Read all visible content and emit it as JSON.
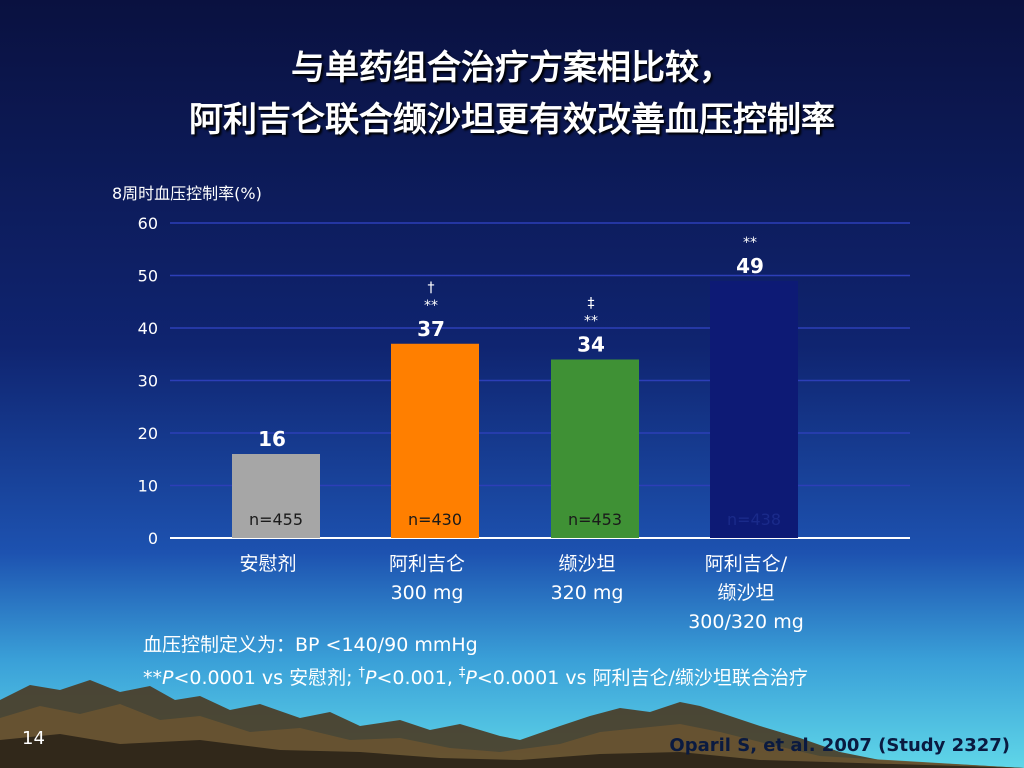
{
  "slide": {
    "title_line1": "与单药组合治疗方案相比较，",
    "title_line2": "阿利吉仑联合缬沙坦更有效改善血压控制率",
    "y_axis_title": "8周时血压控制率(%)",
    "footnote_definition": "血压控制定义为：BP <140/90 mmHg",
    "footnote_pvalues": {
      "a": "**",
      "b": "P",
      "c": "<0.0001 vs 安慰剂; ",
      "d": "†",
      "e": "P",
      "f": "<0.001, ",
      "g": "‡",
      "h": "P",
      "i": "<0.0001 vs 阿利吉仑/缬沙坦联合治疗"
    },
    "slide_number": "14",
    "citation": "Oparil S, et al. 2007 (Study 2327)"
  },
  "chart_data": {
    "type": "bar",
    "ylim": [
      0,
      60
    ],
    "yticks": [
      "0",
      "10",
      "20",
      "30",
      "40",
      "50",
      "60"
    ],
    "grid": true,
    "categories": [
      {
        "lines": [
          "安慰剂"
        ]
      },
      {
        "lines": [
          "阿利吉仑",
          "300 mg"
        ]
      },
      {
        "lines": [
          "缬沙坦",
          "320 mg"
        ]
      },
      {
        "lines": [
          "阿利吉仑/",
          "缬沙坦",
          "300/320 mg"
        ]
      }
    ],
    "values": [
      16,
      37,
      34,
      49
    ],
    "value_labels": [
      "16",
      "37",
      "34",
      "49"
    ],
    "sample_sizes": [
      "n=455",
      "n=430",
      "n=453",
      "n=438"
    ],
    "significance": [
      [],
      [
        "†",
        "**"
      ],
      [
        "‡",
        "**"
      ],
      [
        "**"
      ]
    ],
    "colors": [
      "#a6a6a6",
      "#ff7f00",
      "#3f9135",
      "#0d1a75"
    ]
  }
}
